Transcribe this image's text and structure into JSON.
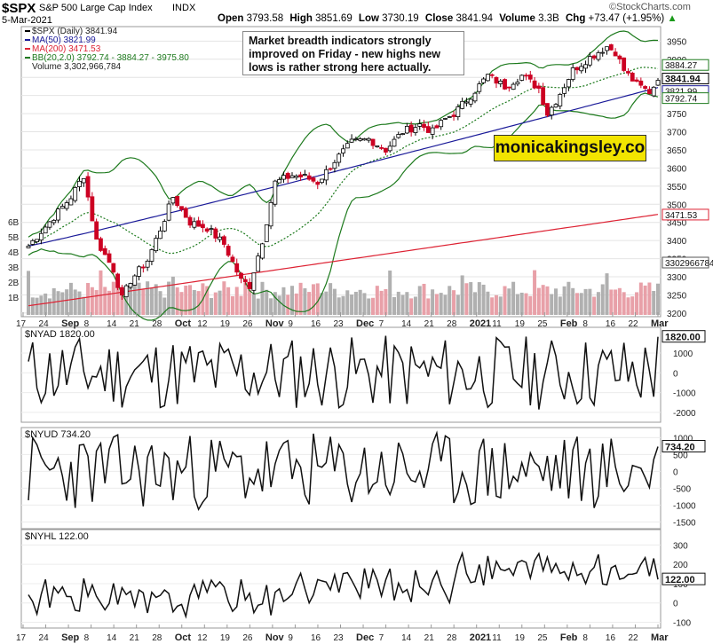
{
  "header": {
    "symbol": "$SPX",
    "name": "S&P 500 Large Cap Index",
    "exchange": "INDX",
    "date": "5-Mar-2021",
    "open_label": "Open",
    "open": "3793.58",
    "high_label": "High",
    "high": "3851.69",
    "low_label": "Low",
    "low": "3730.19",
    "close_label": "Close",
    "close": "3841.94",
    "volume_label": "Volume",
    "volume": "3.3B",
    "chg_label": "Chg",
    "chg": "+73.47 (+1.95%)",
    "chg_arrow": "▲",
    "brand": "©StockCharts.com"
  },
  "colors": {
    "up": "#000000",
    "down": "#cc0022",
    "ma50": "#1a1a99",
    "ma200": "#dd2233",
    "bb": "#1d7a1d",
    "vol_up": "#b0b0b0",
    "vol_down": "#e8a0a8"
  },
  "annotation": "Market breadth indicators strongly improved on Friday - new highs new lows is rather strong here actually.",
  "watermark": "monicakingsley.co",
  "chart_data": [
    {
      "type": "candlestick",
      "title": "$SPX S&P 500 Large Cap Index INDX",
      "legend": [
        {
          "label": "$SPX (Daily) 3841.94",
          "color": "#000000"
        },
        {
          "label": "MA(50) 3821.99",
          "color": "#1a1a99"
        },
        {
          "label": "MA(200) 3471.53",
          "color": "#dd2233"
        },
        {
          "label": "BB(20,2.0) 3792.74 - 3884.27 - 3975.80",
          "color": "#1d7a1d"
        },
        {
          "label": "Volume 3,302,966,784",
          "color": "#000000"
        }
      ],
      "ylim": [
        3190,
        3990
      ],
      "y_ticks": [
        3200,
        3250,
        3300,
        3350,
        3400,
        3450,
        3500,
        3550,
        3600,
        3650,
        3700,
        3750,
        3800,
        3850,
        3900,
        3950
      ],
      "price_labels": [
        {
          "text": "3884.27",
          "value": 3884.27
        },
        {
          "text": "3841.94",
          "value": 3841.94
        },
        {
          "text": "3821.99",
          "value": 3821.99
        },
        {
          "text": "3792.74",
          "value": 3792.74
        },
        {
          "text": "3471.53",
          "value": 3471.53
        },
        {
          "text": "3302966784",
          "value": 3302966784
        }
      ],
      "volume_ticks": [
        "1B",
        "2B",
        "3B",
        "4B",
        "5B",
        "6B"
      ],
      "x_labels": [
        "17",
        "24",
        "Sep",
        "8",
        "14",
        "21",
        "28",
        "Oct",
        "12",
        "19",
        "26",
        "Nov",
        "9",
        "16",
        "23",
        "Dec",
        "7",
        "14",
        "21",
        "28",
        "2021",
        "11",
        "19",
        "25",
        "Feb",
        "8",
        "16",
        "22",
        "Mar"
      ],
      "keypoints": [
        [
          0,
          3385
        ],
        [
          6,
          3465
        ],
        [
          10,
          3520
        ],
        [
          13,
          3580
        ],
        [
          16,
          3400
        ],
        [
          20,
          3320
        ],
        [
          22,
          3240
        ],
        [
          24,
          3290
        ],
        [
          28,
          3345
        ],
        [
          32,
          3460
        ],
        [
          34,
          3520
        ],
        [
          38,
          3450
        ],
        [
          42,
          3435
        ],
        [
          46,
          3390
        ],
        [
          50,
          3290
        ],
        [
          52,
          3275
        ],
        [
          55,
          3400
        ],
        [
          58,
          3560
        ],
        [
          62,
          3580
        ],
        [
          65,
          3575
        ],
        [
          68,
          3560
        ],
        [
          72,
          3620
        ],
        [
          76,
          3670
        ],
        [
          80,
          3680
        ],
        [
          84,
          3650
        ],
        [
          88,
          3700
        ],
        [
          92,
          3720
        ],
        [
          95,
          3700
        ],
        [
          98,
          3735
        ],
        [
          100,
          3750
        ],
        [
          104,
          3800
        ],
        [
          108,
          3855
        ],
        [
          112,
          3825
        ],
        [
          116,
          3855
        ],
        [
          120,
          3820
        ],
        [
          122,
          3750
        ],
        [
          124,
          3785
        ],
        [
          128,
          3870
        ],
        [
          132,
          3905
        ],
        [
          136,
          3935
        ],
        [
          138,
          3920
        ],
        [
          140,
          3870
        ],
        [
          143,
          3830
        ],
        [
          146,
          3810
        ],
        [
          148,
          3842
        ]
      ],
      "ma50_start": 3385,
      "ma50_end": 3822,
      "ma200_start": 3220,
      "ma200_end": 3472
    },
    {
      "type": "line",
      "title": "$NYAD 1820.00",
      "last_label": "1820.00",
      "ylim": [
        -2500,
        2300
      ],
      "y_ticks": [
        1000,
        0,
        -1000,
        -2000
      ],
      "last": 1820
    },
    {
      "type": "line",
      "title": "$NYUD 734.20",
      "last_label": "734.20",
      "ylim": [
        -1700,
        1300
      ],
      "y_ticks": [
        1000,
        500,
        0,
        -500,
        -1000,
        -1500
      ],
      "last": 734.2
    },
    {
      "type": "line",
      "title": "$NYHL 122.00",
      "last_label": "122.00",
      "ylim": [
        -130,
        380
      ],
      "y_ticks": [
        300,
        200,
        100,
        0,
        -100
      ],
      "last": 122
    }
  ]
}
